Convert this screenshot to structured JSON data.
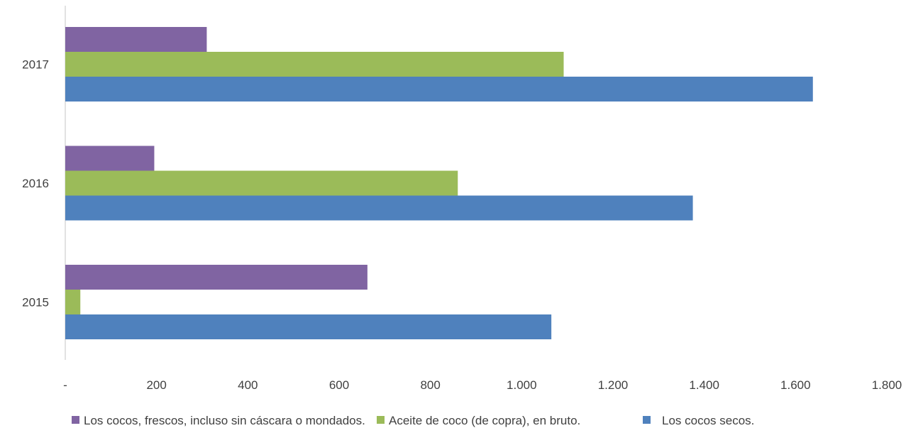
{
  "chart_data": {
    "type": "bar",
    "orientation": "horizontal",
    "categories": [
      "2015",
      "2016",
      "2017"
    ],
    "series": [
      {
        "name": "Los cocos secos.",
        "color": "#4F81BD",
        "values": [
          1065,
          1375,
          1638
        ]
      },
      {
        "name": "Aceite de coco (de copra), en bruto.",
        "color": "#9BBB59",
        "values": [
          33,
          860,
          1092
        ]
      },
      {
        "name": "Los cocos, frescos, incluso sin cáscara o mondados.",
        "color": "#8064A2",
        "values": [
          662,
          195,
          310
        ]
      }
    ],
    "xlim": [
      0,
      1800
    ],
    "x_ticks": [
      0,
      200,
      400,
      600,
      800,
      1000,
      1200,
      1400,
      1600,
      1800
    ],
    "x_tick_labels": [
      "-",
      "200",
      "400",
      "600",
      "800",
      "1.000",
      "1.200",
      "1.400",
      "1.600",
      "1.800"
    ],
    "legend": {
      "position": "bottom",
      "order": [
        "Los cocos, frescos, incluso sin cáscara o mondados.",
        "Aceite de coco (de copra), en bruto.",
        "Los cocos secos."
      ]
    },
    "grid": false
  }
}
